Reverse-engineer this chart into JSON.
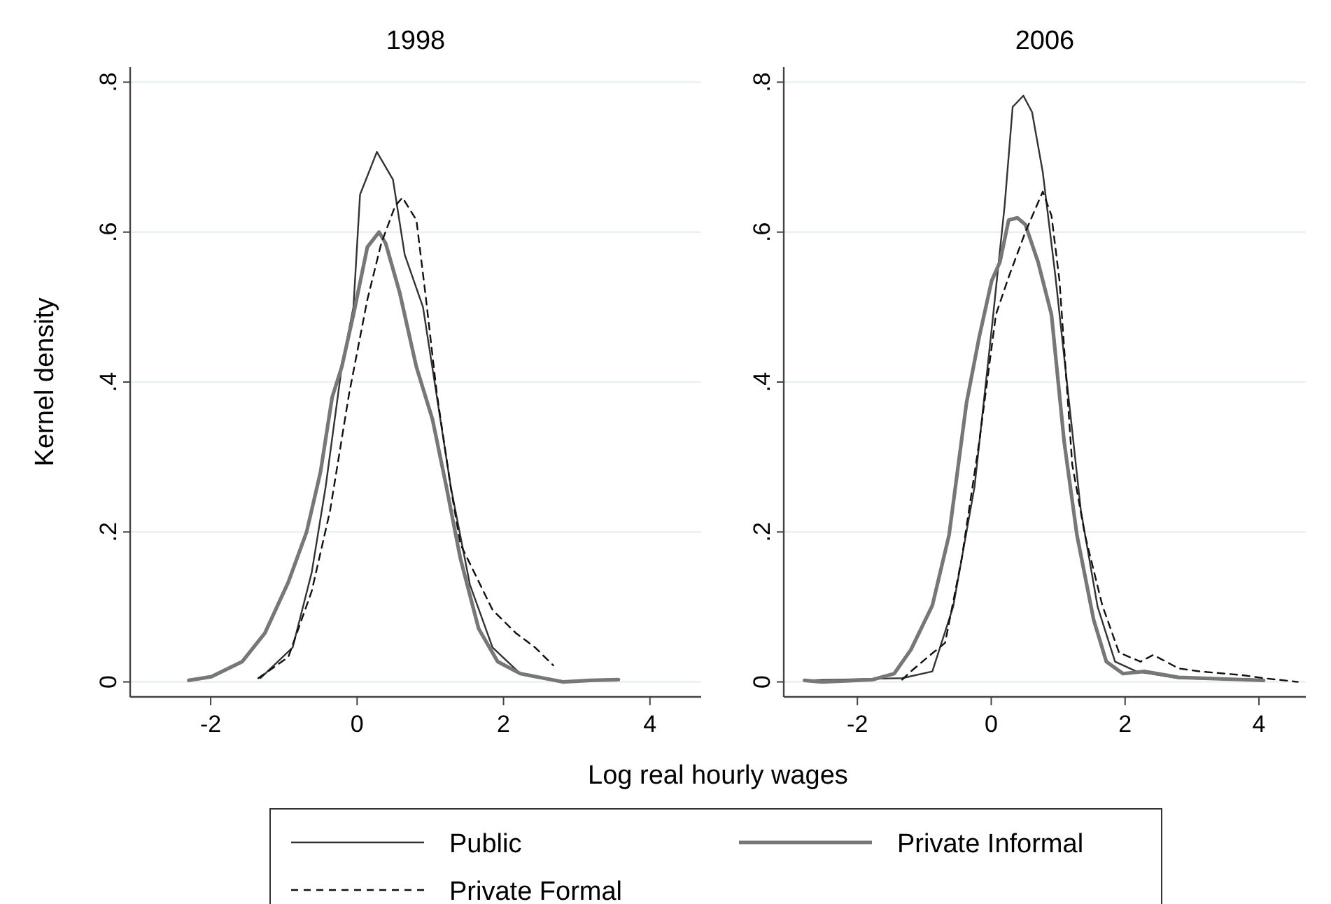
{
  "chart_data": [
    {
      "type": "line",
      "title": "1998",
      "xlabel": "Log real hourly wages",
      "ylabel": "Kernel density",
      "xlim": [
        -3.1,
        4.7
      ],
      "ylim": [
        -0.02,
        0.82
      ],
      "xticks": [
        -2,
        0,
        2,
        4
      ],
      "yticks": [
        {
          "value": 0,
          "label": "0"
        },
        {
          "value": 0.2,
          "label": ".2"
        },
        {
          "value": 0.4,
          "label": ".4"
        },
        {
          "value": 0.6,
          "label": ".6"
        },
        {
          "value": 0.8,
          "label": ".8"
        }
      ],
      "grid": "y",
      "legend": "bottom",
      "series": [
        {
          "name": "Public",
          "color": "#333333",
          "line_style": "solid",
          "x": [
            -1.32,
            -0.88,
            -0.62,
            -0.43,
            -0.21,
            -0.05,
            0.04,
            0.27,
            0.49,
            0.65,
            0.9,
            1.09,
            1.28,
            1.54,
            1.85,
            2.23,
            2.87,
            3.57
          ],
          "values": [
            0.005,
            0.046,
            0.146,
            0.26,
            0.42,
            0.5,
            0.65,
            0.707,
            0.67,
            0.57,
            0.5,
            0.38,
            0.26,
            0.13,
            0.046,
            0.011,
            0.0,
            0.003
          ]
        },
        {
          "name": "Private Informal",
          "color": "#777777",
          "line_style": "solid",
          "x": [
            -2.3,
            -1.99,
            -1.57,
            -1.26,
            -0.94,
            -0.69,
            -0.5,
            -0.34,
            -0.21,
            -0.05,
            0.14,
            0.3,
            0.39,
            0.58,
            0.81,
            1.03,
            1.22,
            1.41,
            1.66,
            1.92,
            2.23,
            2.81,
            3.19,
            3.57
          ],
          "values": [
            0.002,
            0.007,
            0.027,
            0.065,
            0.133,
            0.2,
            0.28,
            0.38,
            0.42,
            0.49,
            0.58,
            0.6,
            0.585,
            0.52,
            0.42,
            0.35,
            0.26,
            0.165,
            0.071,
            0.027,
            0.011,
            0.0,
            0.002,
            0.003
          ]
        },
        {
          "name": "Private Formal",
          "color": "#111111",
          "line_style": "dashed",
          "x": [
            -1.35,
            -0.94,
            -0.62,
            -0.37,
            -0.11,
            0.14,
            0.33,
            0.52,
            0.62,
            0.81,
            0.93,
            1.09,
            1.28,
            1.41,
            1.6,
            1.85,
            2.17,
            2.43,
            2.68
          ],
          "values": [
            0.005,
            0.033,
            0.121,
            0.228,
            0.384,
            0.51,
            0.585,
            0.635,
            0.646,
            0.616,
            0.52,
            0.384,
            0.259,
            0.184,
            0.146,
            0.096,
            0.065,
            0.046,
            0.022
          ]
        }
      ]
    },
    {
      "type": "line",
      "title": "2006",
      "xlim": [
        -3.1,
        4.7
      ],
      "ylim": [
        -0.02,
        0.82
      ],
      "xticks": [
        -2,
        0,
        2,
        4
      ],
      "yticks": [
        {
          "value": 0,
          "label": "0"
        },
        {
          "value": 0.2,
          "label": ".2"
        },
        {
          "value": 0.4,
          "label": ".4"
        },
        {
          "value": 0.6,
          "label": ".6"
        },
        {
          "value": 0.8,
          "label": ".8"
        }
      ],
      "grid": "y",
      "series": [
        {
          "color": "#333333",
          "line_style": "solid",
          "x": [
            -2.79,
            -1.33,
            -0.88,
            -0.57,
            -0.25,
            0.006,
            0.2,
            0.32,
            0.48,
            0.61,
            0.77,
            0.96,
            1.15,
            1.34,
            1.59,
            1.85,
            2.17,
            2.8,
            4.07
          ],
          "values": [
            0.002,
            0.005,
            0.014,
            0.1,
            0.26,
            0.47,
            0.635,
            0.767,
            0.782,
            0.76,
            0.68,
            0.54,
            0.384,
            0.228,
            0.1,
            0.027,
            0.014,
            0.005,
            0.002
          ]
        },
        {
          "color": "#777777",
          "line_style": "solid",
          "x": [
            -2.79,
            -2.53,
            -1.77,
            -1.45,
            -1.2,
            -0.88,
            -0.63,
            -0.37,
            -0.18,
            0.006,
            0.13,
            0.26,
            0.39,
            0.51,
            0.7,
            0.9,
            1.09,
            1.28,
            1.53,
            1.72,
            1.97,
            2.29,
            2.8,
            4.07
          ],
          "values": [
            0.002,
            0.0,
            0.003,
            0.011,
            0.043,
            0.102,
            0.196,
            0.372,
            0.46,
            0.535,
            0.56,
            0.616,
            0.619,
            0.61,
            0.56,
            0.49,
            0.32,
            0.196,
            0.083,
            0.027,
            0.011,
            0.014,
            0.006,
            0.002
          ]
        },
        {
          "color": "#111111",
          "line_style": "dashed",
          "x": [
            -1.33,
            -1.2,
            -0.95,
            -0.69,
            -0.44,
            -0.18,
            0.07,
            0.26,
            0.51,
            0.77,
            0.9,
            1.02,
            1.21,
            1.4,
            1.66,
            1.91,
            2.23,
            2.42,
            2.8,
            3.12,
            3.75,
            4.07,
            4.58
          ],
          "values": [
            0.003,
            0.014,
            0.033,
            0.052,
            0.165,
            0.32,
            0.49,
            0.54,
            0.6,
            0.654,
            0.622,
            0.535,
            0.29,
            0.196,
            0.102,
            0.039,
            0.027,
            0.036,
            0.018,
            0.014,
            0.009,
            0.005,
            0.0
          ]
        }
      ]
    }
  ]
}
